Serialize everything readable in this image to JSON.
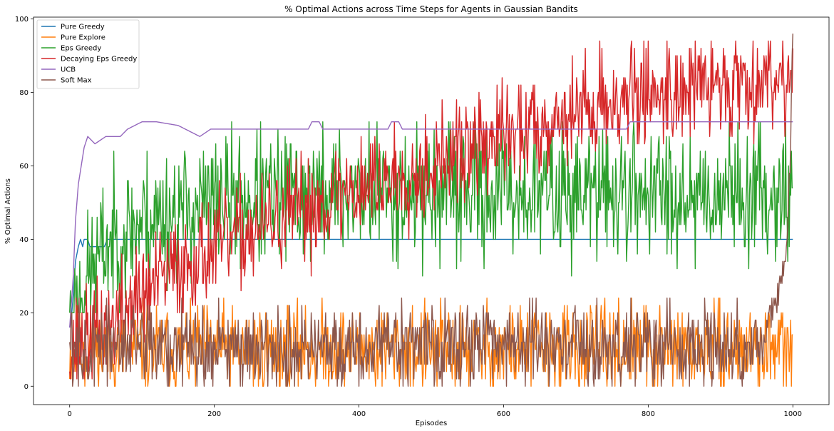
{
  "chart_data": {
    "type": "line",
    "title": "% Optimal Actions across Time Steps for Agents in Gaussian Bandits",
    "xlabel": "Episodes",
    "ylabel": "% Optimal Actions",
    "xlim": [
      -50,
      1050
    ],
    "ylim": [
      -5,
      100.5
    ],
    "xticks": [
      0,
      200,
      400,
      600,
      800,
      1000
    ],
    "yticks": [
      0,
      20,
      40,
      60,
      80,
      100
    ],
    "grid": false,
    "legend_position": "top-left",
    "series": [
      {
        "name": "Pure Greedy",
        "color": "#1f77b4",
        "points": [
          [
            0,
            16
          ],
          [
            3,
            20
          ],
          [
            5,
            25
          ],
          [
            8,
            34
          ],
          [
            12,
            38
          ],
          [
            15,
            40
          ],
          [
            18,
            38
          ],
          [
            20,
            40
          ],
          [
            25,
            40
          ],
          [
            28,
            38
          ],
          [
            48,
            38
          ],
          [
            52,
            40
          ],
          [
            1000,
            40
          ]
        ]
      },
      {
        "name": "Pure Explore",
        "color": "#ff7f0e",
        "noise": {
          "mean": 10,
          "amp": 6,
          "min": 0,
          "max": 24,
          "seed": 11
        }
      },
      {
        "name": "Eps Greedy",
        "color": "#2ca02c",
        "trend": [
          [
            0,
            15
          ],
          [
            20,
            28
          ],
          [
            50,
            38
          ],
          [
            100,
            45
          ],
          [
            200,
            50
          ],
          [
            400,
            53
          ],
          [
            1000,
            53
          ]
        ],
        "noise_amp": 9,
        "seed": 23,
        "clip": [
          20,
          72
        ]
      },
      {
        "name": "Decaying Eps Greedy",
        "color": "#d62728",
        "trend": [
          [
            0,
            10
          ],
          [
            50,
            16
          ],
          [
            100,
            25
          ],
          [
            150,
            32
          ],
          [
            200,
            38
          ],
          [
            300,
            46
          ],
          [
            400,
            54
          ],
          [
            500,
            60
          ],
          [
            600,
            68
          ],
          [
            700,
            75
          ],
          [
            800,
            80
          ],
          [
            900,
            82
          ],
          [
            1000,
            85
          ]
        ],
        "noise_amp": 7,
        "seed": 37,
        "clip": [
          2,
          94
        ]
      },
      {
        "name": "UCB",
        "color": "#9467bd",
        "points": [
          [
            0,
            16
          ],
          [
            5,
            30
          ],
          [
            8,
            45
          ],
          [
            12,
            55
          ],
          [
            16,
            60
          ],
          [
            20,
            65
          ],
          [
            25,
            68
          ],
          [
            35,
            66
          ],
          [
            50,
            68
          ],
          [
            70,
            68
          ],
          [
            80,
            70
          ],
          [
            100,
            72
          ],
          [
            120,
            72
          ],
          [
            150,
            71
          ],
          [
            160,
            70
          ],
          [
            180,
            68
          ],
          [
            195,
            70
          ],
          [
            330,
            70
          ],
          [
            335,
            72
          ],
          [
            345,
            72
          ],
          [
            350,
            70
          ],
          [
            440,
            70
          ],
          [
            445,
            72
          ],
          [
            455,
            72
          ],
          [
            460,
            70
          ],
          [
            770,
            70
          ],
          [
            775,
            72
          ],
          [
            1000,
            72
          ]
        ]
      },
      {
        "name": "Soft Max",
        "color": "#8c564b",
        "noise": {
          "mean": 11,
          "amp": 6,
          "min": 0,
          "max": 24,
          "seed": 57
        },
        "tail": [
          [
            960,
            14
          ],
          [
            975,
            22
          ],
          [
            985,
            28
          ],
          [
            992,
            38
          ],
          [
            996,
            60
          ],
          [
            1000,
            96
          ]
        ]
      }
    ]
  }
}
